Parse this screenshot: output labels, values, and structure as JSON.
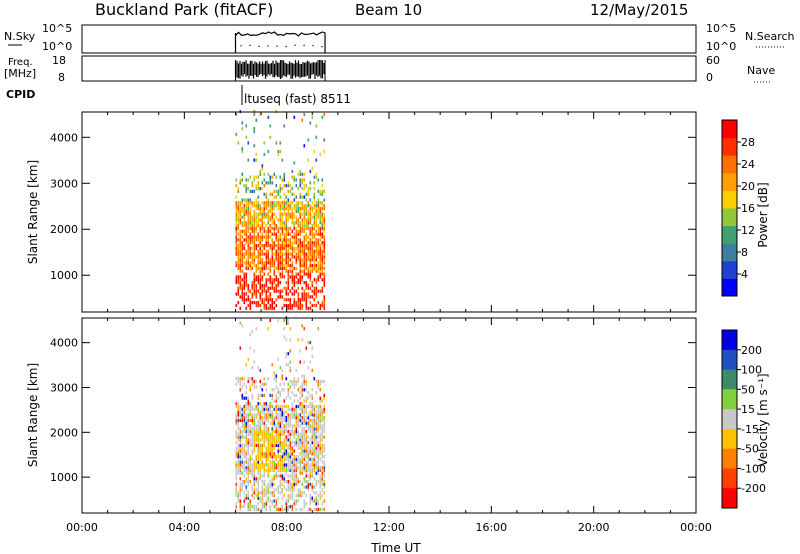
{
  "header": {
    "site": "Buckland Park (fitACF)",
    "beam": "Beam 10",
    "date": "12/May/2015"
  },
  "summary": {
    "nsky_label": "N.Sky",
    "nsky_ticks": [
      "10^5",
      "10^0"
    ],
    "nsearch_label": "N.Search",
    "nsearch_ticks": [
      "10^5",
      "10^0"
    ],
    "freq_label_line1": "Freq.",
    "freq_label_line2": "[MHz]",
    "freq_ticks": [
      "18",
      "8"
    ],
    "nave_label": "Nave",
    "nave_ticks": [
      "60",
      "0"
    ],
    "cpid_label": "CPID",
    "cpid_value": "ltuseq (fast) 8511"
  },
  "chart_data": [
    {
      "type": "heatmap",
      "name": "power-panel",
      "ylabel": "Slant Range [km]",
      "xlabel": "",
      "yticks": [
        "1000",
        "2000",
        "3000",
        "4000"
      ],
      "ylim": [
        200,
        4550
      ],
      "xlim_hours": [
        0,
        24
      ],
      "colorbar_label": "Power [dB]",
      "colorbar_ticks": [
        "4",
        "8",
        "12",
        "16",
        "20",
        "24",
        "28"
      ],
      "colorbar_range": [
        0,
        32
      ],
      "colorbar_colors": [
        "#0000ff",
        "#2040d0",
        "#3f7fa0",
        "#40a070",
        "#90c838",
        "#ffcc00",
        "#ffa000",
        "#ff7000",
        "#ff3000",
        "#ff0000"
      ],
      "data_span_hours": [
        6.0,
        9.5
      ]
    },
    {
      "type": "heatmap",
      "name": "velocity-panel",
      "ylabel": "Slant Range [km]",
      "xlabel": "Time UT",
      "yticks": [
        "1000",
        "2000",
        "3000",
        "4000"
      ],
      "ylim": [
        200,
        4550
      ],
      "xticks": [
        "00:00",
        "04:00",
        "08:00",
        "12:00",
        "16:00",
        "20:00",
        "00:00"
      ],
      "xlim_hours": [
        0,
        24
      ],
      "colorbar_label": "Velocity [m s⁻¹]",
      "colorbar_ticks": [
        "200",
        "100",
        "50",
        "15",
        "-15",
        "-50",
        "-100",
        "-200"
      ],
      "colorbar_colors": [
        "#0000e0",
        "#2050c0",
        "#3c8c6c",
        "#80d040",
        "#c8c8c8",
        "#ffc000",
        "#ff8000",
        "#ff4000",
        "#ff0000"
      ],
      "data_span_hours": [
        6.0,
        9.5
      ]
    }
  ]
}
